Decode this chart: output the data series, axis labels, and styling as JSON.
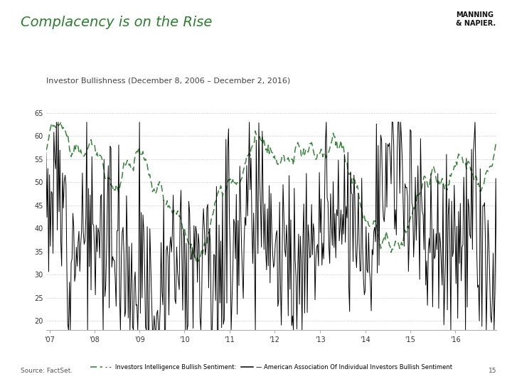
{
  "title": "Complacency is on the Rise",
  "subtitle": "Investor Bullishness (December 8, 2006 – December 2, 2016)",
  "source": "Source: FactSet.",
  "page_num": "15",
  "ylim": [
    18,
    67
  ],
  "yticks": [
    20,
    25,
    30,
    35,
    40,
    45,
    50,
    55,
    60,
    65
  ],
  "xtick_labels": [
    "'07",
    "'08",
    "'09",
    "'10",
    "'11",
    "'12",
    "'13",
    "'14",
    "'15",
    "'16"
  ],
  "legend_ii": "- - Investors Intelligence Bullish Sentiment:",
  "legend_aaii": "— American Association Of Individual Investors Bullish Sentiment",
  "color_ii": "#2e7d32",
  "color_aaii": "#000000",
  "background_color": "#ffffff",
  "grid_color": "#d0d0d0",
  "title_color": "#2e7d32",
  "subtitle_color": "#444444",
  "footer_bar_color": "#2e7d32",
  "title_fontsize": 14,
  "subtitle_fontsize": 8,
  "tick_fontsize": 7,
  "legend_fontsize": 6,
  "source_fontsize": 6.5
}
